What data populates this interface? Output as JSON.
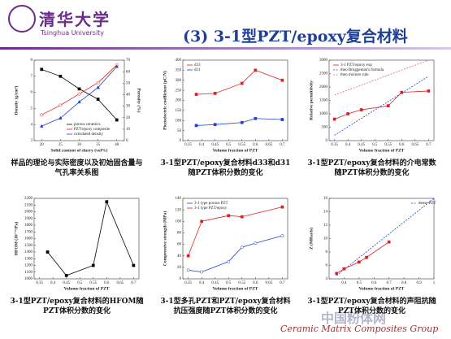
{
  "header": {
    "logo": "清华大学",
    "logo_en": "Tsinghua University",
    "title": "(3) 3-1型PZT/epoxy复合材料"
  },
  "chart_data": [
    {
      "type": "line",
      "xlabel": "Solid content of slurry (vol%)",
      "ylabel": "Density (g/cm³)",
      "y2label": "Porosity (%)",
      "xlim": [
        18,
        42
      ],
      "xticks": [
        20,
        25,
        30,
        35,
        40
      ],
      "ylim": [
        3,
        8
      ],
      "yticks": [
        3,
        4,
        5,
        6,
        7,
        8
      ],
      "y2lim": [
        0,
        70
      ],
      "y2ticks": [
        0,
        10,
        20,
        30,
        40,
        50,
        60,
        70
      ],
      "series": [
        {
          "name": "porous ceramics",
          "color": "#000000",
          "marker": "square",
          "axis": "y2",
          "x": [
            20,
            25,
            30,
            35,
            40
          ],
          "values": [
            62,
            56,
            45,
            36,
            18
          ]
        },
        {
          "name": "PZT/epoxy composite",
          "color": "#e02020",
          "marker": "circle",
          "x": [
            20,
            25,
            30,
            35,
            40
          ],
          "values": [
            4.6,
            5.2,
            5.9,
            6.6,
            7.7
          ]
        },
        {
          "name": "calculated density",
          "color": "#2040d0",
          "marker": "triangle",
          "x": [
            20,
            25,
            30,
            35,
            40
          ],
          "values": [
            3.9,
            4.4,
            5.4,
            6.3,
            7.6
          ]
        }
      ]
    },
    {
      "type": "line",
      "xlabel": "Volume fraction of PZT",
      "ylabel": "Piezoelectric coefficient (pC/N)",
      "xlim": [
        0.33,
        0.72
      ],
      "xticks": [
        0.35,
        0.4,
        0.45,
        0.5,
        0.55,
        0.6,
        0.65,
        0.7
      ],
      "ylim": [
        0,
        400
      ],
      "yticks": [
        0,
        50,
        100,
        150,
        200,
        250,
        300,
        350,
        400
      ],
      "series": [
        {
          "name": "d33",
          "color": "#e02020",
          "marker": "square",
          "x": [
            0.38,
            0.45,
            0.55,
            0.6,
            0.7
          ],
          "values": [
            230,
            235,
            285,
            350,
            300
          ]
        },
        {
          "name": "d31",
          "color": "#2040d0",
          "marker": "square",
          "x": [
            0.38,
            0.45,
            0.55,
            0.6,
            0.7
          ],
          "values": [
            75,
            80,
            90,
            110,
            105
          ]
        }
      ]
    },
    {
      "type": "line",
      "xlabel": "Volume fraction of PZT",
      "ylabel": "Relative permittivity",
      "xlim": [
        0.33,
        0.72
      ],
      "xticks": [
        0.35,
        0.4,
        0.45,
        0.5,
        0.55,
        0.6,
        0.65,
        0.7
      ],
      "ylim": [
        0,
        3000
      ],
      "yticks": [
        0,
        500,
        1000,
        1500,
        2000,
        2500,
        3000
      ],
      "series": [
        {
          "name": "3-1 PZT/epoxy exp",
          "color": "#e02020",
          "marker": "square",
          "x": [
            0.35,
            0.4,
            0.45,
            0.55,
            0.6,
            0.7
          ],
          "values": [
            800,
            1000,
            1150,
            1300,
            1800,
            1850
          ]
        },
        {
          "name": "theo Bruggeman's formula",
          "color": "#2040d0",
          "marker": "none",
          "style": "dashed",
          "x": [
            0.35,
            0.7
          ],
          "values": [
            200,
            2400
          ]
        },
        {
          "name": "theo mixture rule",
          "color": "#e060a0",
          "marker": "none",
          "style": "dashed",
          "x": [
            0.35,
            0.7
          ],
          "values": [
            1700,
            3000
          ]
        }
      ]
    },
    {
      "type": "line",
      "xlabel": "Volume fraction of PZT",
      "ylabel": "HFOM (10⁻¹⁵/Pa)",
      "xlim": [
        0.33,
        0.72
      ],
      "xticks": [
        0.35,
        0.4,
        0.45,
        0.5,
        0.55,
        0.6,
        0.65,
        0.7
      ],
      "ylim": [
        1000,
        2200
      ],
      "yticks": [
        1000,
        1100,
        1200,
        1300,
        1400,
        1500,
        1600,
        1700,
        1800,
        1900,
        2000,
        2100,
        2200
      ],
      "series": [
        {
          "color": "#000000",
          "marker": "square",
          "x": [
            0.38,
            0.45,
            0.55,
            0.6,
            0.7
          ],
          "values": [
            1400,
            1050,
            1200,
            2150,
            1200
          ]
        }
      ]
    },
    {
      "type": "line",
      "xlabel": "Volume fraction of PZT",
      "ylabel": "Compressive strength (MPa)",
      "xlim": [
        0.33,
        0.72
      ],
      "xticks": [
        0.35,
        0.4,
        0.45,
        0.5,
        0.55,
        0.6,
        0.65,
        0.7
      ],
      "ylim": [
        0,
        140
      ],
      "yticks": [
        0,
        20,
        40,
        60,
        80,
        100,
        120,
        140
      ],
      "series": [
        {
          "name": "3-1 type porous PZT",
          "color": "#2040d0",
          "marker": "circle",
          "x": [
            0.35,
            0.4,
            0.5,
            0.55,
            0.6,
            0.7
          ],
          "values": [
            15,
            12,
            30,
            55,
            62,
            75
          ]
        },
        {
          "name": "3-1 type PZT/epoxy",
          "color": "#e02020",
          "marker": "square",
          "x": [
            0.35,
            0.4,
            0.5,
            0.55,
            0.7
          ],
          "values": [
            40,
            100,
            110,
            108,
            125
          ]
        }
      ]
    },
    {
      "type": "line",
      "xlabel": "Volume fraction of PZT",
      "ylabel": "Z (MRayls)",
      "xlim": [
        0.3,
        1.0
      ],
      "xticks": [
        0.4,
        0.5,
        0.6,
        0.7,
        0.8,
        0.9,
        1.0
      ],
      "ylim": [
        4,
        16
      ],
      "yticks": [
        4,
        6,
        8,
        10,
        12,
        14,
        16
      ],
      "series": [
        {
          "name": "dense PZT",
          "color": "#2040d0",
          "marker": "none",
          "style": "dashed",
          "x": [
            0.35,
            1.0
          ],
          "values": [
            4.5,
            16
          ]
        },
        {
          "color": "#e02020",
          "marker": "square",
          "x": [
            0.35,
            0.4,
            0.5,
            0.55,
            0.7
          ],
          "values": [
            4.8,
            5.5,
            6.5,
            7.2,
            9.5
          ]
        }
      ]
    }
  ],
  "captions": [
    "样品的理论与实际密度以及初始固含量与气孔率关系图",
    "3-1型PZT/epoxy复合材料d33和d31随PZT体积分数的变化",
    "3-1型PZT/epoxy复合材料的介电常数随PZT体积分数的变化",
    "3-1型PZT/epoxy复合材料的HFOM随PZT体积分数的变化",
    "3-1型多孔PZT和PZT/epoxy复合材料抗压强度随PZT体积分数的变化",
    "3-1型PZT/epoxy复合材料的声阻抗随PZT体积分数的变化"
  ],
  "footer": "Ceramic Matrix Composites Group",
  "watermark": "中国粉体网"
}
